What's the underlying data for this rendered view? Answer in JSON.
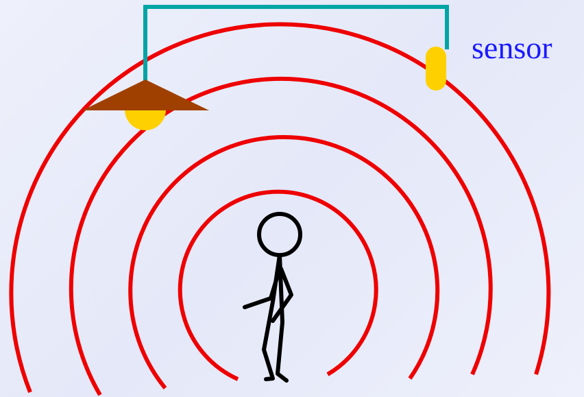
{
  "sensor_label": "sensor"
}
